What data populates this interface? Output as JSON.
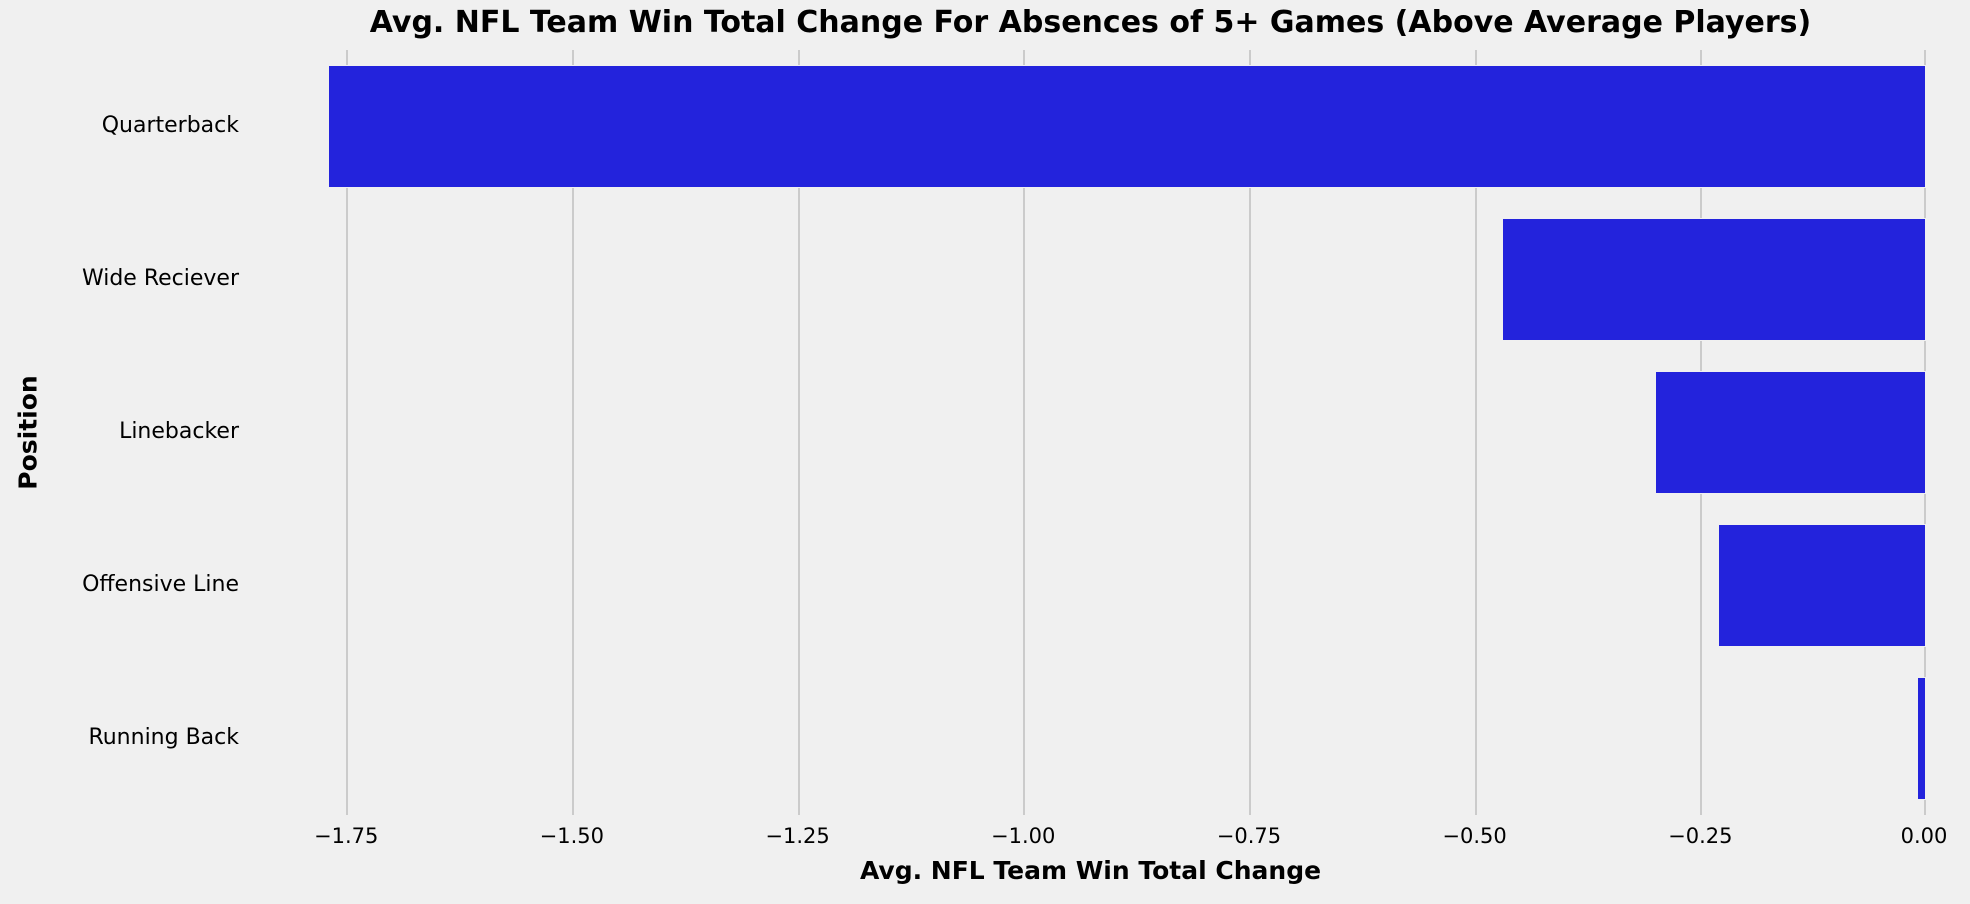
{
  "figure": {
    "background_color": "#f0f0f0",
    "gridline_color": "#cbcbcb",
    "bar_color": "#2323dc",
    "bar_edge_color": "#f0f0f0",
    "text_color": "#000000"
  },
  "chart_data": {
    "type": "bar",
    "orientation": "horizontal",
    "title": "Avg. NFL Team Win Total Change For Absences of 5+ Games (Above Average Players)",
    "xlabel": "Avg. NFL Team Win Total Change",
    "ylabel": "Position",
    "categories": [
      "Quarterback",
      "Wide Reciever",
      "Linebacker",
      "Offensive Line",
      "Running Back"
    ],
    "values": [
      -1.77,
      -0.47,
      -0.3,
      -0.23,
      -0.01
    ],
    "xlim": [
      -1.851,
      0
    ],
    "xtick_values": [
      -1.75,
      -1.5,
      -1.25,
      -1.0,
      -0.75,
      -0.5,
      -0.25,
      0.0
    ],
    "xtick_labels": [
      "−1.75",
      "−1.50",
      "−1.25",
      "−1.00",
      "−0.75",
      "−0.50",
      "−0.25",
      "0.00"
    ],
    "grid": true,
    "gridlines": "vertical",
    "legend": null,
    "bar_height_fraction": 0.8
  }
}
